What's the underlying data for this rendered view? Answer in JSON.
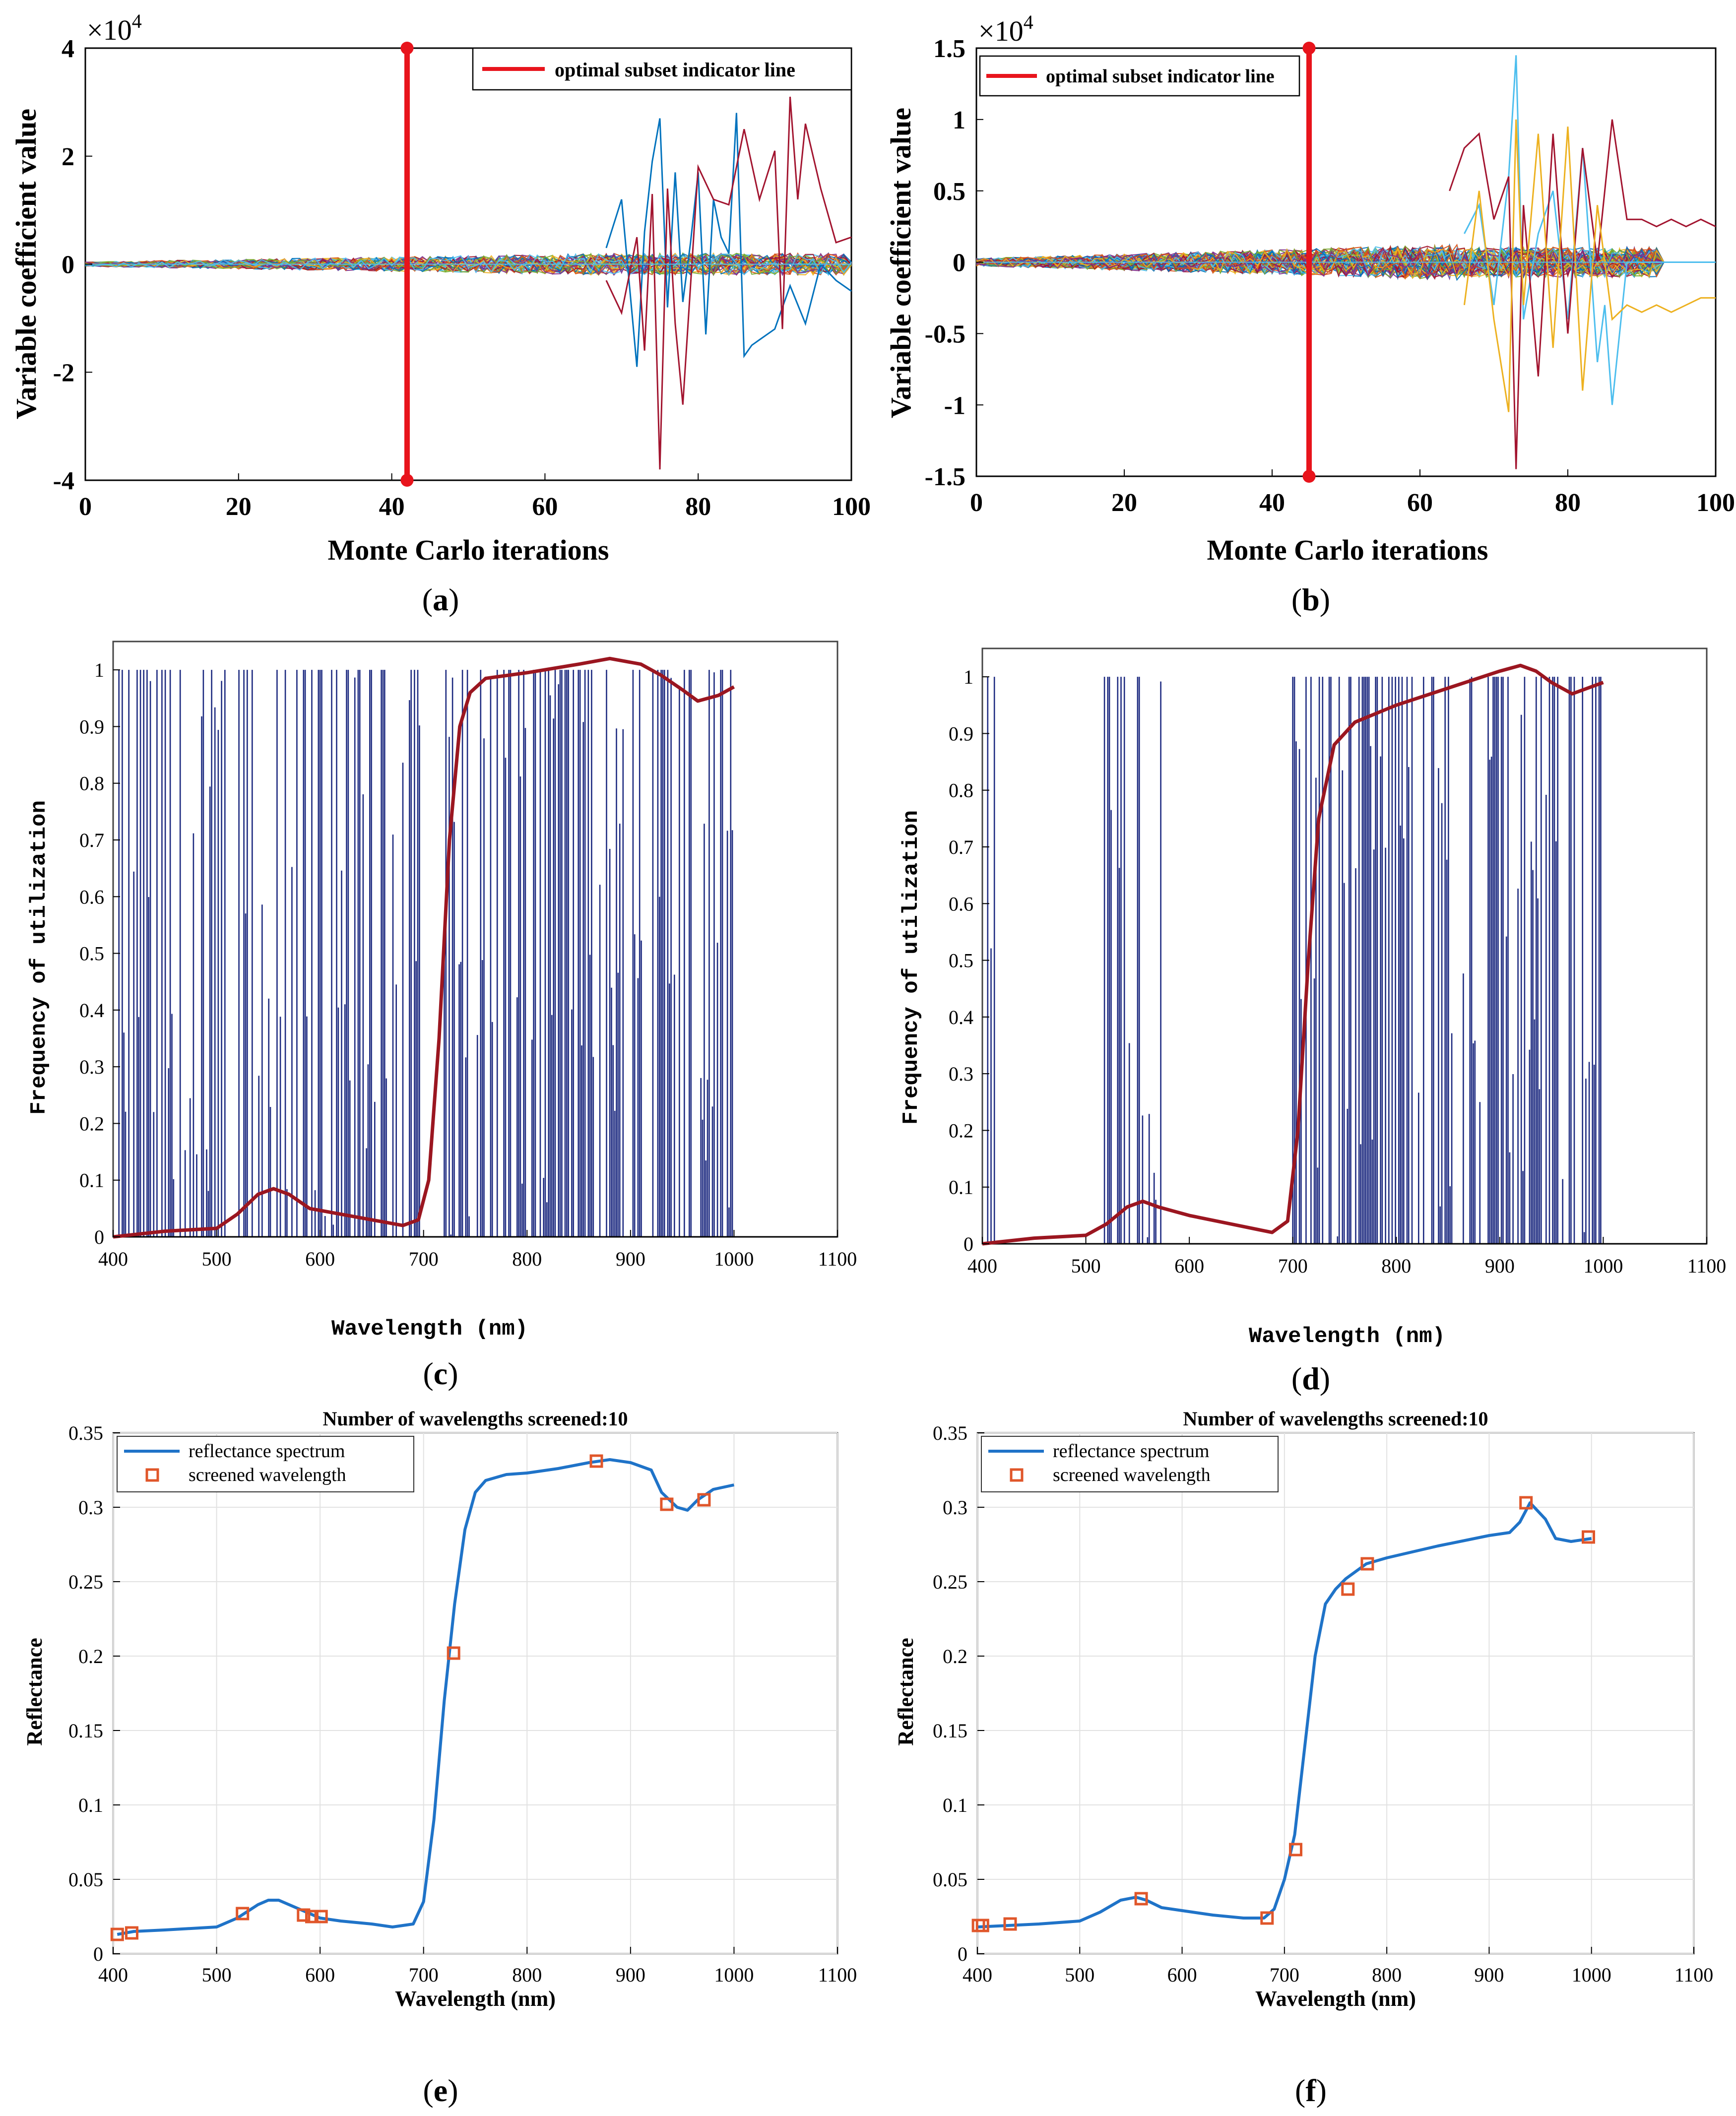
{
  "colors": {
    "red": "#e8141c",
    "blue_line": "#1f73c8",
    "navy_bar": "#1d2a80",
    "dark_red": "#9b1620",
    "orange_marker": "#e0562a",
    "grid": "#e2e2e2"
  },
  "chart_data": [
    {
      "id": "a",
      "type": "line",
      "panel_label": "(a)",
      "xlabel": "Monte Carlo iterations",
      "ylabel": "Variable coefficient value",
      "multiplier": "×10",
      "multiplier_exp": "4",
      "xlim": [
        0,
        100
      ],
      "ylim": [
        -4,
        4
      ],
      "xticks": [
        "0",
        "20",
        "40",
        "60",
        "80",
        "100"
      ],
      "yticks": [
        "-4",
        "-2",
        "0",
        "2",
        "4"
      ],
      "legend": {
        "label": "optimal subset indicator line",
        "placement": "top-right"
      },
      "indicator_x": 42,
      "series_note": "many coefficient paths, amplitude grows after iteration 68",
      "highlight_series": [
        {
          "name": "blue",
          "x": [
            68,
            70,
            72,
            73,
            74,
            75,
            76,
            77,
            78,
            79,
            80,
            81,
            82,
            83,
            84,
            85,
            86,
            87,
            88,
            90,
            92,
            94,
            96,
            98,
            100
          ],
          "y": [
            0.3,
            1.2,
            -1.9,
            0.6,
            1.9,
            2.7,
            -0.8,
            1.7,
            -0.7,
            0.4,
            1.7,
            -1.3,
            1.2,
            0.5,
            0.2,
            2.8,
            -1.7,
            -1.5,
            -1.4,
            -1.2,
            -0.4,
            -1.1,
            0.0,
            -0.3,
            -0.5
          ]
        },
        {
          "name": "crimson",
          "x": [
            68,
            70,
            72,
            73,
            74,
            75,
            76,
            77,
            78,
            80,
            82,
            84,
            86,
            88,
            90,
            91,
            92,
            93,
            94,
            96,
            98,
            100
          ],
          "y": [
            -0.3,
            -0.9,
            0.5,
            -1.6,
            1.3,
            -3.8,
            1.4,
            -1.1,
            -2.6,
            1.8,
            1.2,
            1.1,
            2.5,
            1.2,
            2.1,
            -1.2,
            3.1,
            1.2,
            2.6,
            1.4,
            0.4,
            0.5
          ]
        }
      ]
    },
    {
      "id": "b",
      "type": "line",
      "panel_label": "(b)",
      "xlabel": "Monte Carlo iterations",
      "ylabel": "Variable coefficient value",
      "multiplier": "×10",
      "multiplier_exp": "4",
      "xlim": [
        0,
        100
      ],
      "ylim": [
        -1.5,
        1.5
      ],
      "xticks": [
        "0",
        "20",
        "40",
        "60",
        "80",
        "100"
      ],
      "yticks": [
        "-1.5",
        "-1",
        "-0.5",
        "0",
        "0.5",
        "1",
        "1.5"
      ],
      "legend": {
        "label": "optimal subset indicator line",
        "placement": "top-left"
      },
      "indicator_x": 45,
      "series_note": "dense coefficient paths, amplitude grows after iteration 60",
      "highlight_series": [
        {
          "name": "cyan",
          "x": [
            66,
            68,
            70,
            72,
            73,
            74,
            76,
            78,
            80,
            82,
            84,
            85,
            86,
            88,
            100
          ],
          "y": [
            0.2,
            0.4,
            -0.3,
            0.6,
            1.45,
            -0.4,
            0.2,
            0.5,
            -0.4,
            0.8,
            -0.7,
            -0.3,
            -1.0,
            0.0,
            0.0
          ]
        },
        {
          "name": "crimson",
          "x": [
            64,
            66,
            68,
            70,
            72,
            73,
            74,
            76,
            78,
            80,
            82,
            84,
            86,
            88,
            90,
            92,
            94,
            96,
            98,
            100
          ],
          "y": [
            0.5,
            0.8,
            0.9,
            0.3,
            0.6,
            -1.45,
            0.4,
            -0.8,
            0.9,
            -0.5,
            0.8,
            0.0,
            1.0,
            0.3,
            0.3,
            0.25,
            0.3,
            0.25,
            0.3,
            0.25
          ]
        },
        {
          "name": "orange",
          "x": [
            66,
            68,
            70,
            72,
            73,
            74,
            76,
            78,
            80,
            82,
            84,
            86,
            88,
            90,
            92,
            94,
            96,
            98,
            100
          ],
          "y": [
            -0.3,
            0.5,
            -0.4,
            -1.05,
            1.0,
            -0.3,
            0.9,
            -0.6,
            0.95,
            -0.9,
            0.4,
            -0.4,
            -0.3,
            -0.35,
            -0.3,
            -0.35,
            -0.3,
            -0.25,
            -0.25
          ]
        }
      ]
    },
    {
      "id": "c",
      "type": "bar",
      "panel_label": "(c)",
      "xlabel": "Wavelength (nm)",
      "ylabel": "Frequency of utilization",
      "xlim": [
        400,
        1100
      ],
      "ylim": [
        0,
        1.05
      ],
      "xticks": [
        "400",
        "500",
        "600",
        "700",
        "800",
        "900",
        "1000",
        "1100"
      ],
      "yticks": [
        "0",
        "0.1",
        "0.2",
        "0.3",
        "0.4",
        "0.5",
        "0.6",
        "0.7",
        "0.8",
        "0.9",
        "1"
      ],
      "bar_regions": [
        [
          404,
          510
        ],
        [
          520,
          700
        ],
        [
          720,
          1000
        ]
      ],
      "curve": {
        "x": [
          400,
          450,
          500,
          520,
          540,
          555,
          570,
          590,
          620,
          650,
          680,
          695,
          705,
          715,
          725,
          735,
          745,
          760,
          800,
          850,
          880,
          910,
          930,
          950,
          965,
          985,
          1000
        ],
        "y": [
          0.0,
          0.01,
          0.015,
          0.04,
          0.075,
          0.085,
          0.075,
          0.05,
          0.04,
          0.03,
          0.02,
          0.03,
          0.1,
          0.35,
          0.7,
          0.9,
          0.96,
          0.985,
          0.995,
          1.01,
          1.02,
          1.01,
          0.99,
          0.965,
          0.945,
          0.955,
          0.97
        ]
      }
    },
    {
      "id": "d",
      "type": "bar",
      "panel_label": "(d)",
      "xlabel": "Wavelength (nm)",
      "ylabel": "Frequency of utilization",
      "xlim": [
        400,
        1100
      ],
      "ylim": [
        0,
        1.05
      ],
      "xticks": [
        "400",
        "500",
        "600",
        "700",
        "800",
        "900",
        "1000",
        "1100"
      ],
      "yticks": [
        "0",
        "0.1",
        "0.2",
        "0.3",
        "0.4",
        "0.5",
        "0.6",
        "0.7",
        "0.8",
        "0.9",
        "1"
      ],
      "bar_regions": [
        [
          402,
          412
        ],
        [
          518,
          575
        ],
        [
          700,
          1000
        ]
      ],
      "curve": {
        "x": [
          400,
          450,
          500,
          520,
          540,
          555,
          570,
          600,
          640,
          680,
          695,
          705,
          715,
          725,
          740,
          760,
          800,
          850,
          900,
          920,
          935,
          950,
          970,
          985,
          1000
        ],
        "y": [
          0.0,
          0.01,
          0.015,
          0.035,
          0.065,
          0.075,
          0.065,
          0.05,
          0.035,
          0.02,
          0.04,
          0.2,
          0.5,
          0.75,
          0.88,
          0.92,
          0.95,
          0.98,
          1.01,
          1.02,
          1.01,
          0.99,
          0.97,
          0.98,
          0.99
        ]
      }
    },
    {
      "id": "e",
      "type": "line",
      "panel_label": "(e)",
      "title": "Number of wavelengths screened:10",
      "xlabel": "Wavelength (nm)",
      "ylabel": "Reflectance",
      "xlim": [
        400,
        1100
      ],
      "ylim": [
        0,
        0.35
      ],
      "xticks": [
        "400",
        "500",
        "600",
        "700",
        "800",
        "900",
        "1000",
        "1100"
      ],
      "yticks": [
        "0",
        "0.05",
        "0.1",
        "0.15",
        "0.2",
        "0.25",
        "0.3",
        "0.35"
      ],
      "legend": {
        "entries": [
          "reflectance spectrum",
          "screened wavelength"
        ],
        "placement": "top-left"
      },
      "spectrum": {
        "x": [
          404,
          420,
          450,
          500,
          520,
          540,
          550,
          560,
          580,
          600,
          620,
          650,
          670,
          690,
          700,
          710,
          720,
          730,
          740,
          750,
          760,
          780,
          800,
          830,
          860,
          880,
          900,
          920,
          930,
          945,
          955,
          965,
          980,
          1000
        ],
        "y": [
          0.013,
          0.015,
          0.016,
          0.018,
          0.024,
          0.033,
          0.036,
          0.036,
          0.03,
          0.024,
          0.022,
          0.02,
          0.018,
          0.02,
          0.035,
          0.09,
          0.17,
          0.235,
          0.285,
          0.31,
          0.318,
          0.322,
          0.323,
          0.326,
          0.33,
          0.332,
          0.33,
          0.325,
          0.31,
          0.3,
          0.298,
          0.305,
          0.312,
          0.315
        ]
      },
      "screened": {
        "x": [
          404,
          418,
          525,
          584,
          592,
          601,
          729,
          867,
          935,
          971
        ],
        "y": [
          0.013,
          0.014,
          0.027,
          0.026,
          0.025,
          0.025,
          0.202,
          0.331,
          0.302,
          0.305
        ]
      }
    },
    {
      "id": "f",
      "type": "line",
      "panel_label": "(f)",
      "title": "Number of wavelengths screened:10",
      "xlabel": "Wavelength (nm)",
      "ylabel": "Reflectance",
      "xlim": [
        400,
        1100
      ],
      "ylim": [
        0,
        0.35
      ],
      "xticks": [
        "400",
        "500",
        "600",
        "700",
        "800",
        "900",
        "1000",
        "1100"
      ],
      "yticks": [
        "0",
        "0.05",
        "0.1",
        "0.15",
        "0.2",
        "0.25",
        "0.3",
        "0.35"
      ],
      "legend": {
        "entries": [
          "reflectance spectrum",
          "screened wavelength"
        ],
        "placement": "top-left"
      },
      "spectrum": {
        "x": [
          400,
          430,
          460,
          500,
          520,
          540,
          555,
          565,
          580,
          600,
          630,
          660,
          680,
          690,
          700,
          710,
          720,
          730,
          740,
          750,
          760,
          780,
          800,
          850,
          900,
          920,
          930,
          940,
          955,
          965,
          980,
          1000
        ],
        "y": [
          0.018,
          0.019,
          0.02,
          0.022,
          0.028,
          0.036,
          0.038,
          0.036,
          0.031,
          0.029,
          0.026,
          0.024,
          0.024,
          0.03,
          0.05,
          0.08,
          0.14,
          0.2,
          0.235,
          0.245,
          0.252,
          0.262,
          0.266,
          0.274,
          0.281,
          0.283,
          0.29,
          0.303,
          0.292,
          0.279,
          0.277,
          0.279
        ]
      },
      "screened": {
        "x": [
          401,
          405,
          432,
          560,
          683,
          711,
          762,
          781,
          936,
          997
        ],
        "y": [
          0.019,
          0.019,
          0.02,
          0.037,
          0.024,
          0.07,
          0.245,
          0.262,
          0.303,
          0.28
        ]
      }
    }
  ]
}
